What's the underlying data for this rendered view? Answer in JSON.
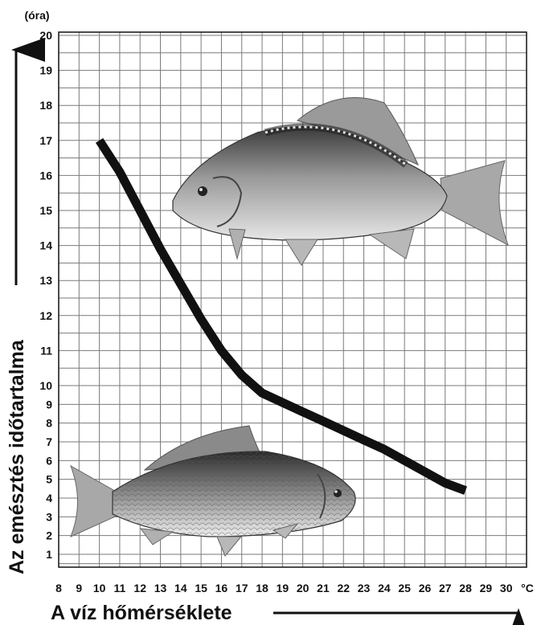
{
  "chart_data": {
    "type": "line",
    "xlabel": "A víz hőmérséklete",
    "ylabel": "Az emésztés időtartalma",
    "y_unit": "(óra)",
    "x_unit": "°C",
    "x_ticks": [
      8,
      9,
      10,
      11,
      12,
      13,
      14,
      15,
      16,
      17,
      18,
      19,
      20,
      21,
      22,
      23,
      24,
      25,
      26,
      27,
      28,
      29,
      30
    ],
    "y_ticks": [
      1,
      2,
      3,
      4,
      5,
      6,
      7,
      8,
      9,
      10,
      11,
      12,
      13,
      14,
      15,
      16,
      17,
      18,
      19,
      20
    ],
    "xlim": [
      8,
      31
    ],
    "ylim": [
      0.5,
      20
    ],
    "grid": true,
    "series": [
      {
        "x": [
          10,
          11,
          12,
          13,
          14,
          15,
          16,
          17,
          18,
          19,
          20,
          21,
          22,
          23,
          24,
          25,
          26,
          27,
          28
        ],
        "y": [
          17,
          16.1,
          15,
          13.9,
          12.9,
          11.9,
          11.0,
          10.3,
          9.6,
          9.1,
          8.6,
          8.1,
          7.6,
          7.1,
          6.6,
          6.0,
          5.4,
          4.8,
          4.4
        ]
      }
    ],
    "colors": {
      "line": "#111111",
      "grid": "#7a7a7a",
      "axis": "#111111"
    }
  },
  "images": {
    "mirror_carp": "mirror-carp-photo",
    "common_carp": "common-carp-photo"
  }
}
